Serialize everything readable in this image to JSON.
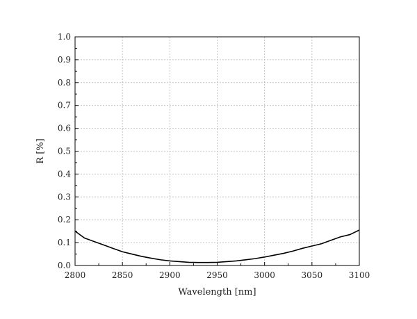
{
  "chart_data": {
    "type": "line",
    "xlabel": "Wavelength [nm]",
    "ylabel": "R [%]",
    "xlim": [
      2800,
      3100
    ],
    "ylim": [
      0.0,
      1.0
    ],
    "xticks": [
      2800,
      2850,
      2900,
      2950,
      3000,
      3050,
      3100
    ],
    "yticks": [
      0.0,
      0.1,
      0.2,
      0.3,
      0.4,
      0.5,
      0.6,
      0.7,
      0.8,
      0.9,
      1.0
    ],
    "grid": true,
    "series": [
      {
        "color": "#000000",
        "x": [
          2800,
          2810,
          2820,
          2830,
          2840,
          2850,
          2860,
          2870,
          2880,
          2890,
          2900,
          2910,
          2920,
          2930,
          2940,
          2950,
          2960,
          2970,
          2980,
          2990,
          3000,
          3010,
          3020,
          3030,
          3040,
          3050,
          3060,
          3070,
          3080,
          3090,
          3100
        ],
        "y": [
          0.15,
          0.12,
          0.105,
          0.09,
          0.075,
          0.06,
          0.05,
          0.04,
          0.032,
          0.025,
          0.02,
          0.017,
          0.014,
          0.013,
          0.013,
          0.014,
          0.017,
          0.02,
          0.025,
          0.03,
          0.037,
          0.045,
          0.053,
          0.063,
          0.075,
          0.085,
          0.095,
          0.11,
          0.125,
          0.135,
          0.155
        ]
      }
    ]
  }
}
